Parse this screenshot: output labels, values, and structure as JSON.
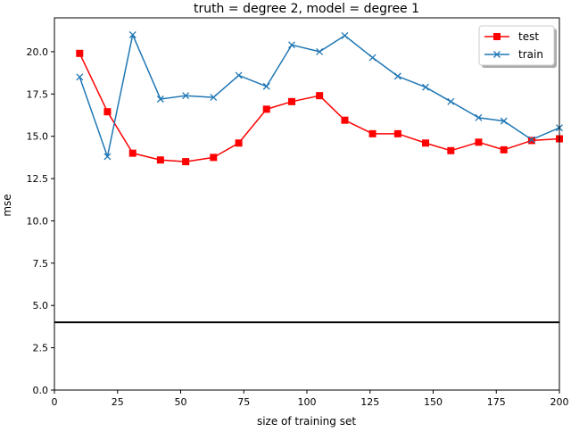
{
  "chart_data": {
    "type": "line",
    "title": "truth = degree 2, model = degree 1",
    "xlabel": "size of training set",
    "ylabel": "mse",
    "xlim": [
      0,
      200
    ],
    "ylim": [
      0,
      22
    ],
    "xticks": [
      0,
      25,
      50,
      75,
      100,
      125,
      150,
      175,
      200
    ],
    "xtick_labels": [
      "0",
      "25",
      "50",
      "75",
      "100",
      "125",
      "150",
      "175",
      "200"
    ],
    "yticks": [
      0,
      2.5,
      5,
      7.5,
      10,
      12.5,
      15,
      17.5,
      20
    ],
    "ytick_labels": [
      "0.0",
      "2.5",
      "5.0",
      "7.5",
      "10.0",
      "12.5",
      "15.0",
      "17.5",
      "20.0"
    ],
    "grid": false,
    "legend_position": "upper right",
    "x": [
      10,
      21,
      31,
      42,
      52,
      63,
      73,
      84,
      94,
      105,
      115,
      126,
      136,
      147,
      157,
      168,
      178,
      189,
      200
    ],
    "series": [
      {
        "name": "test",
        "color": "#ff0000",
        "marker": "square",
        "values": [
          19.9,
          16.45,
          14.0,
          13.6,
          13.5,
          13.75,
          14.6,
          16.6,
          17.05,
          17.4,
          15.95,
          15.15,
          15.15,
          14.6,
          14.15,
          14.65,
          14.2,
          14.75,
          14.85
        ]
      },
      {
        "name": "train",
        "color": "#1f77b4",
        "marker": "x",
        "values": [
          18.5,
          13.8,
          21.0,
          17.2,
          17.4,
          17.3,
          18.6,
          17.95,
          20.4,
          20.0,
          20.95,
          19.65,
          18.55,
          17.9,
          17.05,
          16.1,
          15.9,
          14.8,
          15.5
        ]
      }
    ],
    "hline": {
      "y": 4.0,
      "color": "#000000"
    }
  }
}
